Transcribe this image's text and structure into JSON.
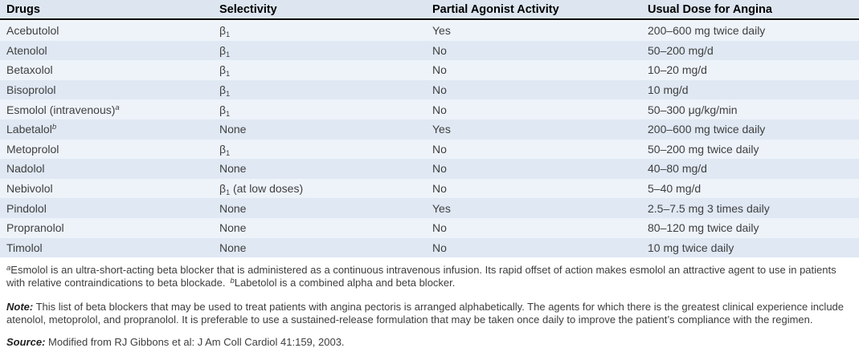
{
  "table": {
    "columns": [
      {
        "label": "Drugs"
      },
      {
        "label": "Selectivity"
      },
      {
        "label": "Partial Agonist Activity"
      },
      {
        "label": "Usual Dose for Angina"
      }
    ],
    "rows": [
      {
        "drug": "Acebutolol",
        "drug_sup": "",
        "sel": "β",
        "sel_sub": "1",
        "sel_rest": "",
        "paa": "Yes",
        "dose": "200–600 mg twice daily"
      },
      {
        "drug": "Atenolol",
        "drug_sup": "",
        "sel": "β",
        "sel_sub": "1",
        "sel_rest": "",
        "paa": "No",
        "dose": "50–200 mg/d"
      },
      {
        "drug": "Betaxolol",
        "drug_sup": "",
        "sel": "β",
        "sel_sub": "1",
        "sel_rest": "",
        "paa": "No",
        "dose": "10–20 mg/d"
      },
      {
        "drug": "Bisoprolol",
        "drug_sup": "",
        "sel": "β",
        "sel_sub": "1",
        "sel_rest": "",
        "paa": "No",
        "dose": "10 mg/d"
      },
      {
        "drug": "Esmolol (intravenous)",
        "drug_sup": "a",
        "sel": "β",
        "sel_sub": "1",
        "sel_rest": "",
        "paa": "No",
        "dose": "50–300 μg/kg/min"
      },
      {
        "drug": "Labetalol",
        "drug_sup": "b",
        "sel": "None",
        "sel_sub": "",
        "sel_rest": "",
        "paa": "Yes",
        "dose": "200–600 mg twice daily"
      },
      {
        "drug": "Metoprolol",
        "drug_sup": "",
        "sel": "β",
        "sel_sub": "1",
        "sel_rest": "",
        "paa": "No",
        "dose": "50–200 mg twice daily"
      },
      {
        "drug": "Nadolol",
        "drug_sup": "",
        "sel": "None",
        "sel_sub": "",
        "sel_rest": "",
        "paa": "No",
        "dose": "40–80 mg/d"
      },
      {
        "drug": "Nebivolol",
        "drug_sup": "",
        "sel": "β",
        "sel_sub": "1",
        "sel_rest": " (at low doses)",
        "paa": "No",
        "dose": "5–40 mg/d"
      },
      {
        "drug": "Pindolol",
        "drug_sup": "",
        "sel": "None",
        "sel_sub": "",
        "sel_rest": "",
        "paa": "Yes",
        "dose": "2.5–7.5 mg 3 times daily"
      },
      {
        "drug": "Propranolol",
        "drug_sup": "",
        "sel": "None",
        "sel_sub": "",
        "sel_rest": "",
        "paa": "No",
        "dose": "80–120 mg twice daily"
      },
      {
        "drug": "Timolol",
        "drug_sup": "",
        "sel": "None",
        "sel_sub": "",
        "sel_rest": "",
        "paa": "No",
        "dose": "10 mg twice daily"
      }
    ]
  },
  "footnotes": {
    "a_sup": "a",
    "a_text": "Esmolol is an ultra-short-acting beta blocker that is administered as a continuous intravenous infusion. Its rapid offset of action makes esmolol an attractive agent to use in patients with relative contraindications to beta blockade.",
    "b_sup": "b",
    "b_text": "Labetolol is a combined alpha and beta blocker."
  },
  "note": {
    "label": "Note:",
    "text": "This list of beta blockers that may be used to treat patients with angina pectoris is arranged alphabetically. The agents for which there is the greatest clinical experience include atenolol, metoprolol, and propranolol. It is preferable to use a sustained-release formulation that may be taken once daily to improve the patient’s compliance with the regimen."
  },
  "source": {
    "label": "Source:",
    "text": "Modified from RJ Gibbons et al: J Am Coll Cardiol 41:159, 2003."
  },
  "colors": {
    "header_bg": "#dde6f0",
    "row_light": "#eef3fa",
    "row_dark": "#dfe8f3",
    "rule": "#000000",
    "header_text": "#000000",
    "body_text": "#404040"
  }
}
